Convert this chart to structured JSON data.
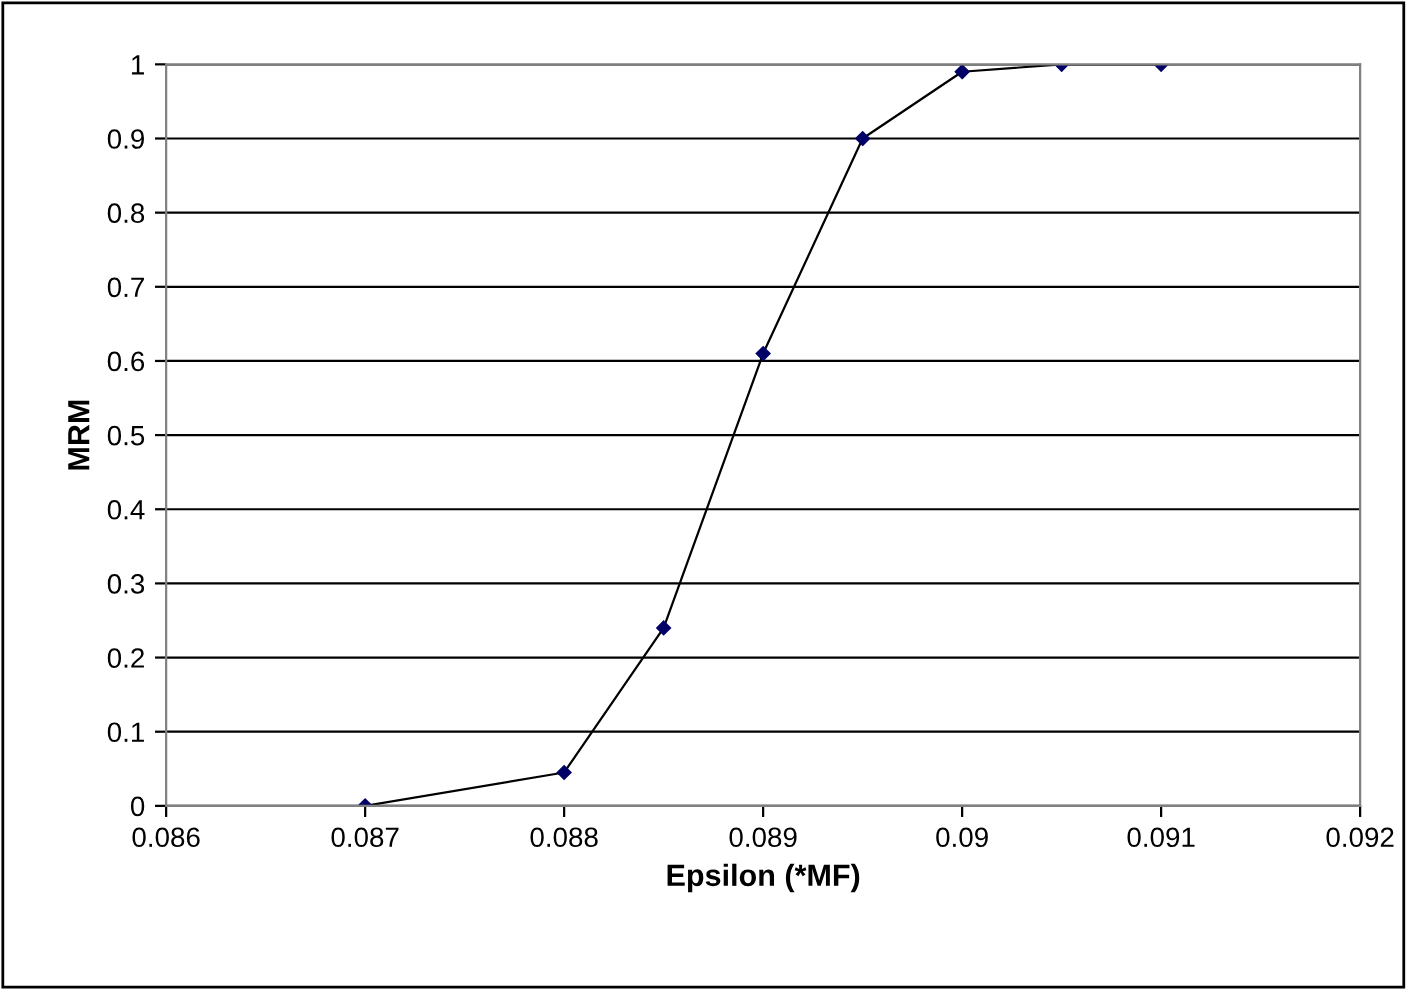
{
  "chart_data": {
    "type": "line",
    "xlabel": "Epsilon (*MF)",
    "ylabel": "MRM",
    "x": [
      0.087,
      0.088,
      0.0885,
      0.089,
      0.0895,
      0.09,
      0.0905,
      0.091
    ],
    "series": [
      {
        "color": "#000000",
        "values": [
          0,
          0.045,
          0.24,
          0.61,
          0.9,
          0.99,
          1.0,
          1.0
        ]
      }
    ],
    "xlim": [
      0.086,
      0.092
    ],
    "xticks": [
      0.086,
      0.087,
      0.088,
      0.089,
      0.09,
      0.091,
      0.092
    ],
    "ylim": [
      0,
      1
    ],
    "yticks": [
      0,
      0.1,
      0.2,
      0.3,
      0.4,
      0.5,
      0.6,
      0.7,
      0.8,
      0.9,
      1
    ],
    "grid": "y",
    "marker": "diamond",
    "line_style": "solid"
  }
}
